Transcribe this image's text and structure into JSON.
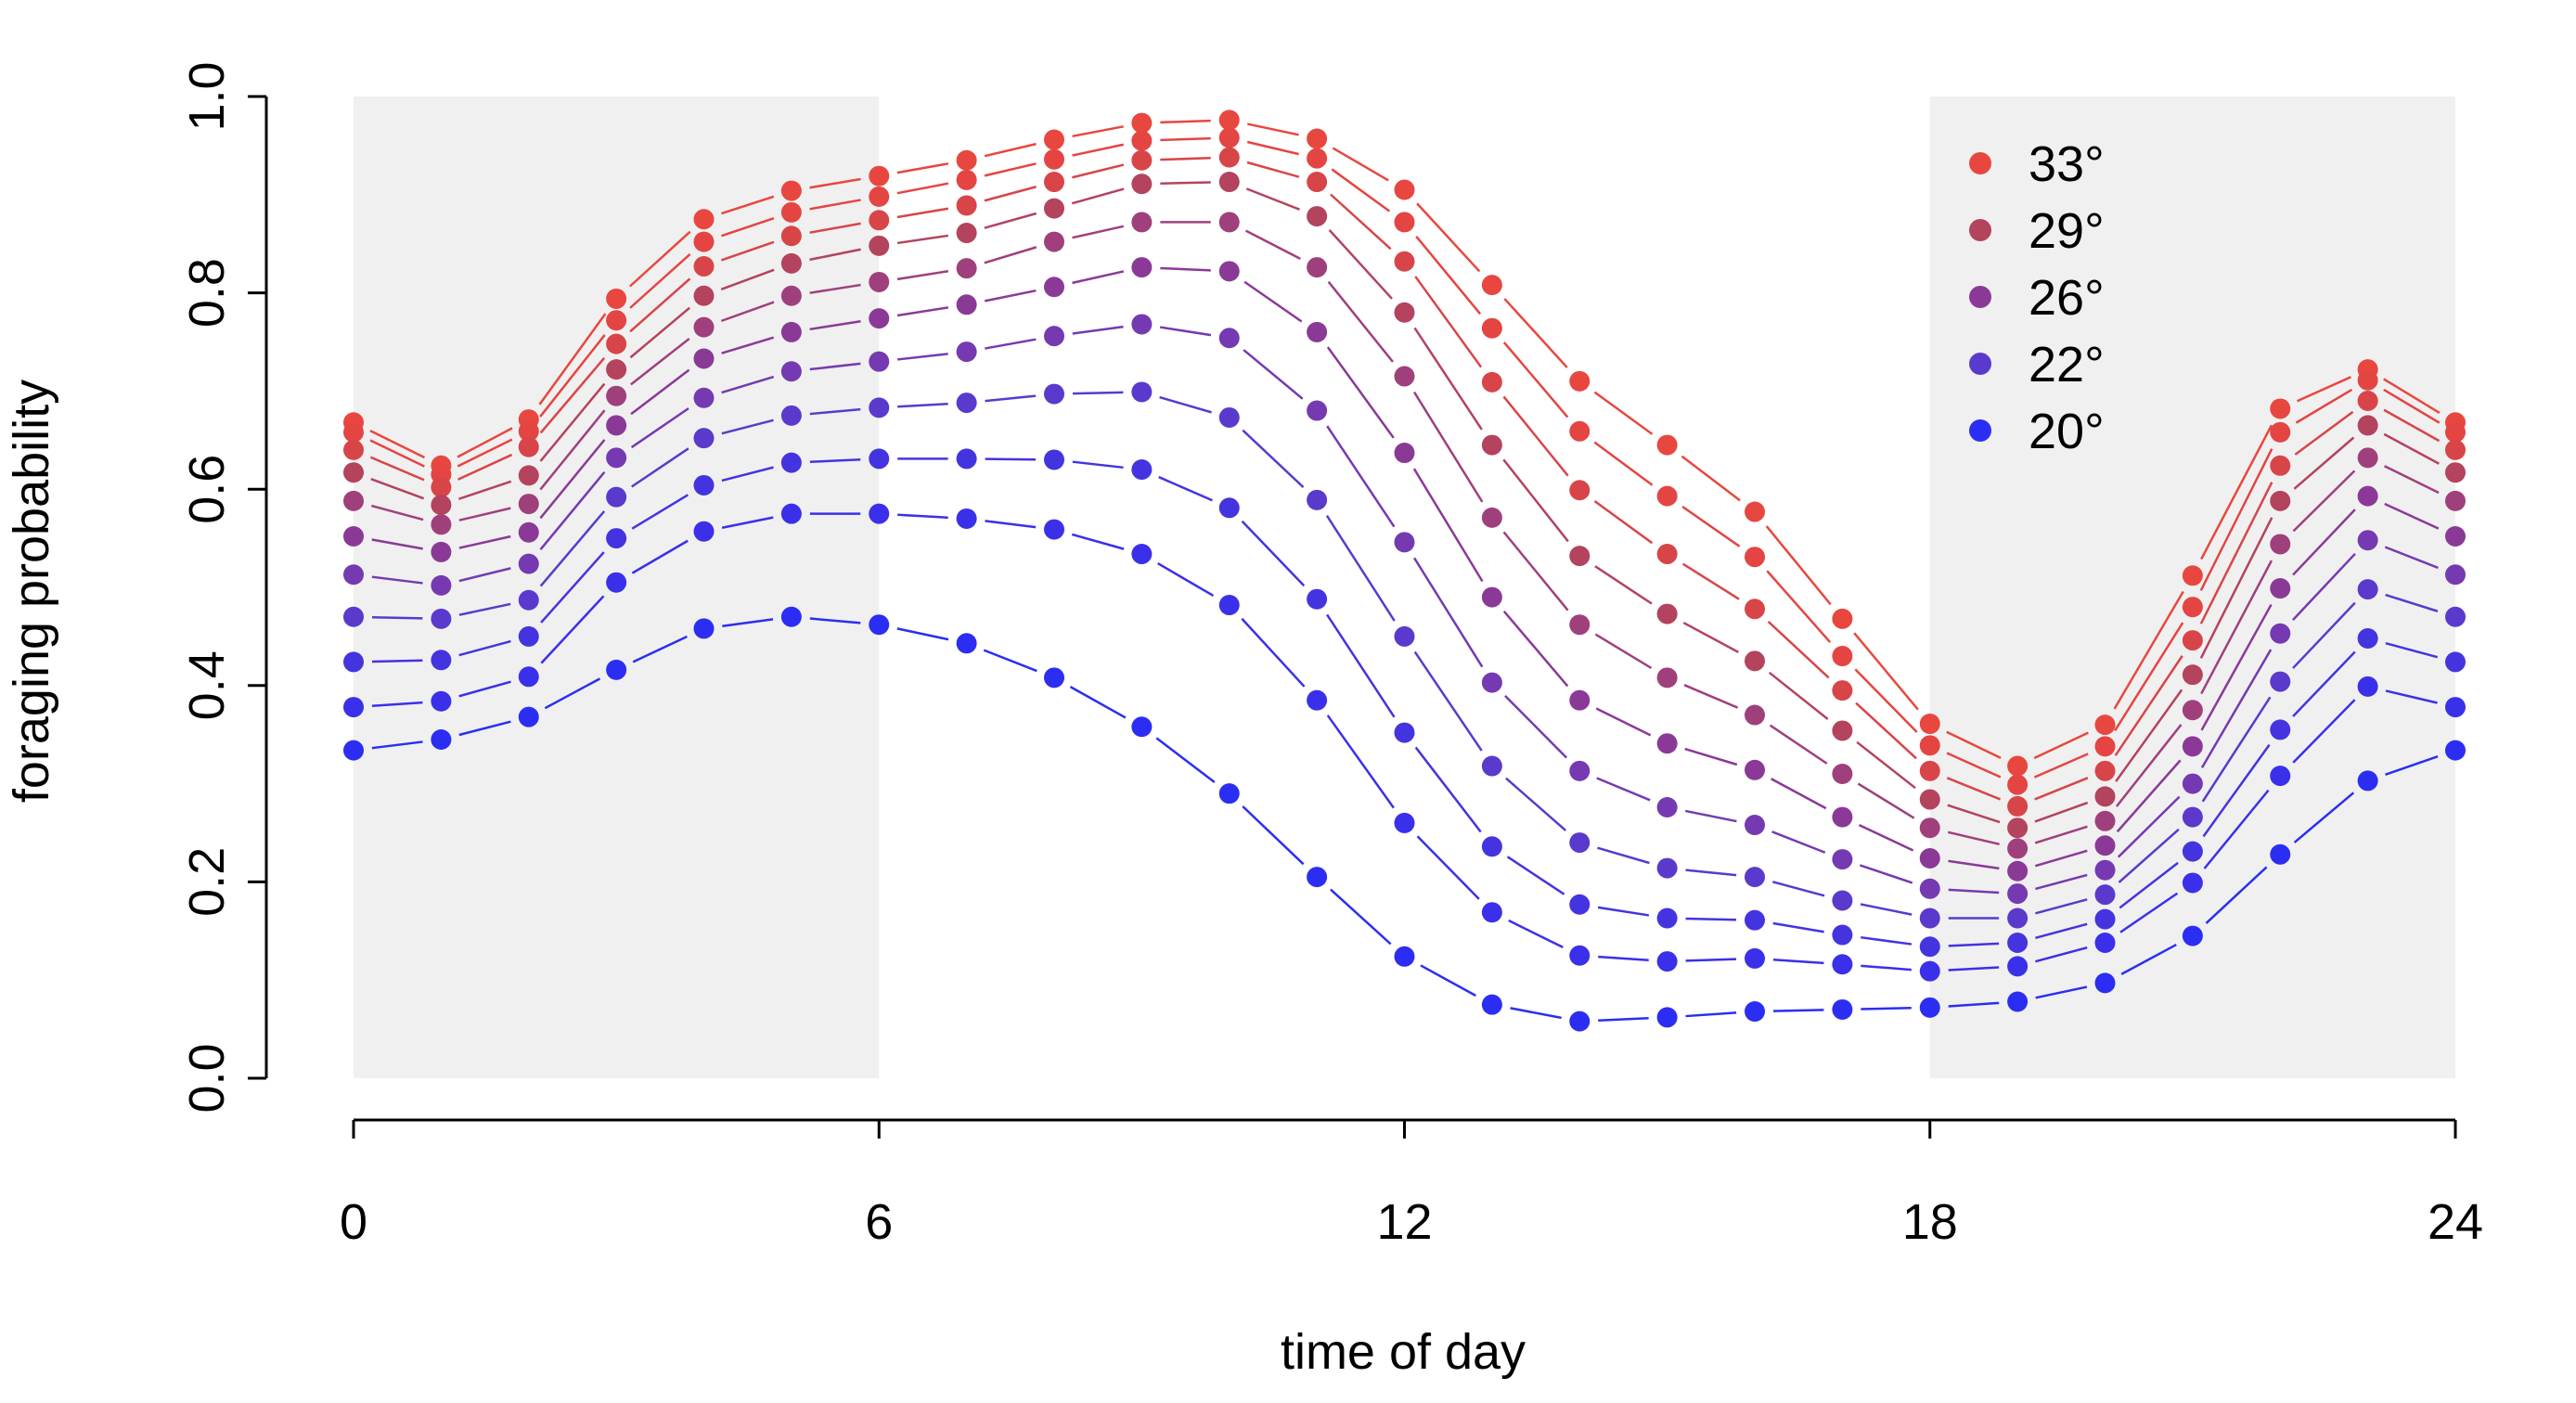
{
  "chart_data": {
    "type": "line",
    "xlabel": "time of day",
    "ylabel": "foraging probability",
    "xlim": [
      0,
      24
    ],
    "ylim": [
      0,
      1
    ],
    "xticks": [
      "0",
      "6",
      "12",
      "18",
      "24"
    ],
    "xtick_values": [
      0,
      6,
      12,
      18,
      24
    ],
    "yticks": [
      "0.0",
      "0.2",
      "0.4",
      "0.6",
      "0.8",
      "1.0"
    ],
    "ytick_values": [
      0,
      0.2,
      0.4,
      0.6,
      0.8,
      1.0
    ],
    "night_shading": [
      [
        0,
        6
      ],
      [
        18,
        24
      ]
    ],
    "shading_color": "#f0f0f0",
    "legend": [
      {
        "label": "33°",
        "color": "#e8473f"
      },
      {
        "label": "29°",
        "color": "#b4435e"
      },
      {
        "label": "26°",
        "color": "#8a3a96"
      },
      {
        "label": "22°",
        "color": "#5a3acd"
      },
      {
        "label": "20°",
        "color": "#2b2ef2"
      }
    ],
    "x": [
      0,
      1,
      2,
      3,
      4,
      5,
      6,
      7,
      8,
      9,
      10,
      11,
      12,
      13,
      14,
      15,
      16,
      17,
      18,
      19,
      20,
      21,
      22,
      23,
      24
    ],
    "series": [
      {
        "name": "33°",
        "color": "#e8473f",
        "values": [
          0.668,
          0.624,
          0.671,
          0.794,
          0.875,
          0.904,
          0.919,
          0.935,
          0.956,
          0.973,
          0.976,
          0.957,
          0.905,
          0.808,
          0.71,
          0.645,
          0.577,
          0.468,
          0.361,
          0.318,
          0.36,
          0.512,
          0.682,
          0.722,
          0.668
        ]
      },
      {
        "name": "",
        "color": "#e44543",
        "values": [
          0.658,
          0.615,
          0.659,
          0.772,
          0.852,
          0.882,
          0.898,
          0.915,
          0.936,
          0.955,
          0.958,
          0.937,
          0.872,
          0.764,
          0.659,
          0.593,
          0.531,
          0.43,
          0.339,
          0.299,
          0.338,
          0.48,
          0.658,
          0.711,
          0.658
        ]
      },
      {
        "name": "",
        "color": "#d84549",
        "values": [
          0.64,
          0.602,
          0.643,
          0.748,
          0.827,
          0.858,
          0.874,
          0.889,
          0.913,
          0.935,
          0.938,
          0.913,
          0.832,
          0.709,
          0.599,
          0.534,
          0.478,
          0.395,
          0.313,
          0.277,
          0.313,
          0.446,
          0.624,
          0.69,
          0.64
        ]
      },
      {
        "name": "29°",
        "color": "#b4435e",
        "values": [
          0.617,
          0.584,
          0.614,
          0.722,
          0.797,
          0.83,
          0.848,
          0.861,
          0.886,
          0.911,
          0.913,
          0.878,
          0.78,
          0.645,
          0.532,
          0.473,
          0.425,
          0.354,
          0.284,
          0.255,
          0.287,
          0.411,
          0.588,
          0.665,
          0.617
        ]
      },
      {
        "name": "",
        "color": "#9f407c",
        "values": [
          0.588,
          0.564,
          0.585,
          0.695,
          0.765,
          0.797,
          0.811,
          0.825,
          0.852,
          0.872,
          0.872,
          0.826,
          0.715,
          0.571,
          0.462,
          0.408,
          0.37,
          0.31,
          0.255,
          0.234,
          0.262,
          0.375,
          0.544,
          0.632,
          0.588
        ]
      },
      {
        "name": "26°",
        "color": "#8a3a96",
        "values": [
          0.552,
          0.536,
          0.556,
          0.665,
          0.733,
          0.76,
          0.774,
          0.788,
          0.806,
          0.826,
          0.822,
          0.76,
          0.637,
          0.49,
          0.385,
          0.341,
          0.314,
          0.266,
          0.224,
          0.211,
          0.237,
          0.338,
          0.499,
          0.593,
          0.552
        ]
      },
      {
        "name": "",
        "color": "#753ab1",
        "values": [
          0.513,
          0.502,
          0.524,
          0.632,
          0.693,
          0.72,
          0.73,
          0.74,
          0.756,
          0.768,
          0.754,
          0.68,
          0.546,
          0.403,
          0.313,
          0.276,
          0.258,
          0.223,
          0.193,
          0.188,
          0.212,
          0.3,
          0.453,
          0.548,
          0.513
        ]
      },
      {
        "name": "22°",
        "color": "#5a3acd",
        "values": [
          0.47,
          0.468,
          0.487,
          0.592,
          0.652,
          0.675,
          0.683,
          0.688,
          0.697,
          0.699,
          0.673,
          0.589,
          0.45,
          0.318,
          0.24,
          0.214,
          0.205,
          0.181,
          0.163,
          0.163,
          0.187,
          0.266,
          0.404,
          0.498,
          0.47
        ]
      },
      {
        "name": "",
        "color": "#4434e0",
        "values": [
          0.424,
          0.426,
          0.45,
          0.55,
          0.604,
          0.627,
          0.631,
          0.631,
          0.63,
          0.62,
          0.581,
          0.488,
          0.352,
          0.236,
          0.177,
          0.163,
          0.161,
          0.146,
          0.134,
          0.138,
          0.162,
          0.231,
          0.355,
          0.448,
          0.424
        ]
      },
      {
        "name": "",
        "color": "#3a30ea",
        "values": [
          0.378,
          0.384,
          0.409,
          0.505,
          0.557,
          0.575,
          0.575,
          0.57,
          0.559,
          0.534,
          0.482,
          0.385,
          0.26,
          0.169,
          0.125,
          0.119,
          0.122,
          0.116,
          0.109,
          0.114,
          0.138,
          0.199,
          0.308,
          0.399,
          0.378
        ]
      },
      {
        "name": "20°",
        "color": "#2b2ef2",
        "values": [
          0.334,
          0.345,
          0.368,
          0.416,
          0.458,
          0.47,
          0.462,
          0.443,
          0.408,
          0.358,
          0.29,
          0.205,
          0.124,
          0.075,
          0.058,
          0.062,
          0.068,
          0.07,
          0.072,
          0.078,
          0.097,
          0.145,
          0.228,
          0.303,
          0.334
        ]
      }
    ]
  }
}
